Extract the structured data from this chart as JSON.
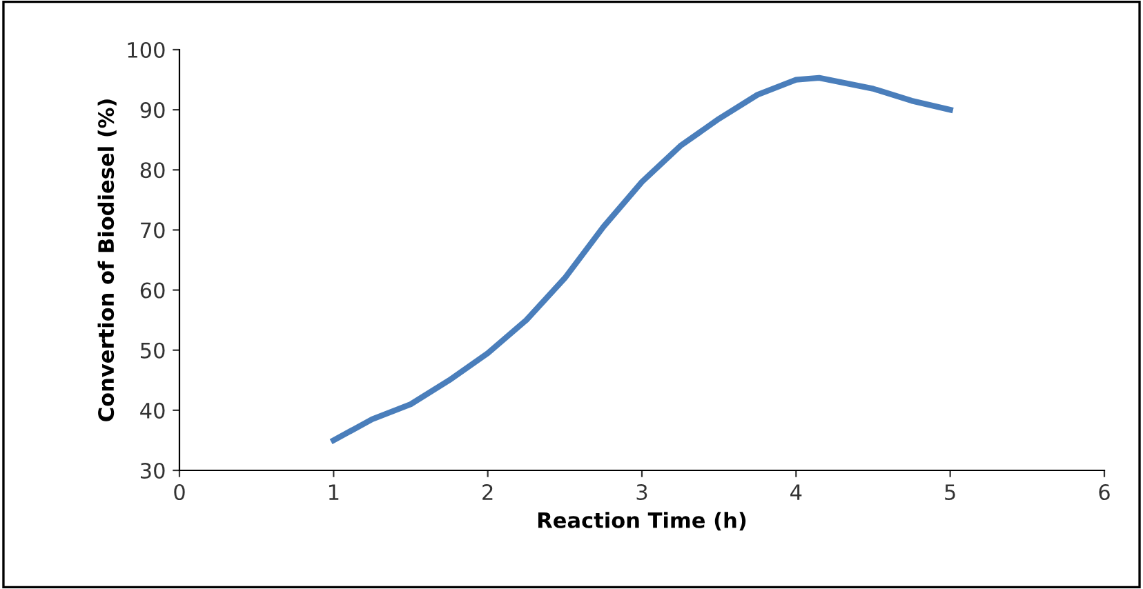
{
  "chart_data": {
    "type": "line",
    "xlabel": "Reaction Time (h)",
    "ylabel": "Convertion of Biodiesel (%)",
    "x": [
      1,
      1.25,
      1.5,
      1.75,
      2,
      2.25,
      2.5,
      2.75,
      3,
      3.25,
      3.5,
      3.75,
      4,
      4.15,
      4.5,
      4.75,
      5
    ],
    "series": [
      {
        "color": "#4a7ebb",
        "values": [
          35,
          38.5,
          41,
          45,
          49.5,
          55,
          62,
          70.5,
          78,
          84,
          88.5,
          92.5,
          95,
          95.3,
          93.5,
          91.5,
          90
        ]
      }
    ],
    "xlim": [
      0,
      6
    ],
    "xticks": [
      0,
      1,
      2,
      3,
      4,
      5,
      6
    ],
    "ylim": [
      30,
      100
    ],
    "yticks": [
      30,
      40,
      50,
      60,
      70,
      80,
      90,
      100
    ],
    "grid": false,
    "legend": false,
    "marker": "none",
    "line_style": "solid"
  }
}
